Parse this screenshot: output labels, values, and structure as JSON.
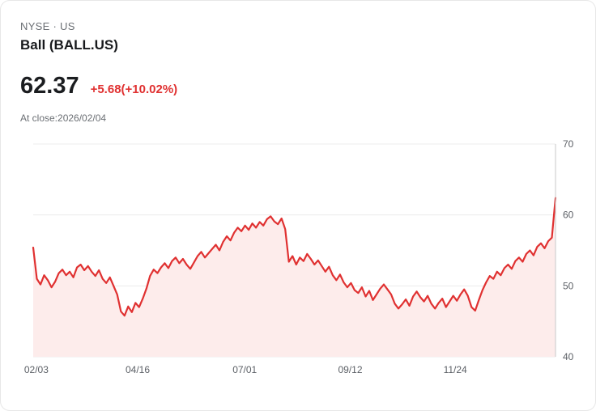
{
  "header": {
    "exchange_line": "NYSE · US",
    "name": "Ball (BALL.US)",
    "price": "62.37",
    "change": "+5.68(+10.02%)",
    "as_of": "At close:2026/02/04"
  },
  "colors": {
    "accent_red": "#e03131",
    "area_fill": "#fdeceb",
    "grid": "#ececec",
    "axis": "#c9c9c9",
    "tick_text": "#5c6066"
  },
  "chart_data": {
    "type": "line",
    "title": "Ball (BALL.US) 1-year price history",
    "xlabel": "",
    "ylabel": "",
    "ylim": [
      40,
      70
    ],
    "y_ticks": [
      70,
      60,
      50,
      40
    ],
    "grid": true,
    "legend_position": "none",
    "x_ticks": [
      {
        "label": "02/03",
        "pos": 0.006
      },
      {
        "label": "04/16",
        "pos": 0.2
      },
      {
        "label": "07/01",
        "pos": 0.405
      },
      {
        "label": "09/12",
        "pos": 0.607
      },
      {
        "label": "11/24",
        "pos": 0.808
      }
    ],
    "values": [
      55.4,
      51.0,
      50.2,
      51.5,
      50.8,
      49.8,
      50.6,
      51.8,
      52.3,
      51.5,
      52.0,
      51.2,
      52.6,
      53.0,
      52.2,
      52.8,
      52.0,
      51.4,
      52.2,
      51.0,
      50.4,
      51.2,
      50.0,
      48.8,
      46.4,
      45.8,
      47.1,
      46.3,
      47.6,
      47.0,
      48.2,
      49.6,
      51.4,
      52.3,
      51.8,
      52.6,
      53.2,
      52.5,
      53.5,
      54.0,
      53.2,
      53.8,
      53.0,
      52.4,
      53.3,
      54.2,
      54.8,
      54.0,
      54.6,
      55.2,
      55.8,
      55.0,
      56.2,
      57.0,
      56.4,
      57.5,
      58.2,
      57.7,
      58.5,
      57.9,
      58.8,
      58.2,
      59.0,
      58.5,
      59.4,
      59.8,
      59.1,
      58.7,
      59.5,
      58.0,
      53.4,
      54.2,
      53.0,
      54.0,
      53.5,
      54.5,
      53.8,
      53.0,
      53.6,
      52.8,
      52.0,
      52.7,
      51.5,
      50.8,
      51.6,
      50.5,
      49.8,
      50.4,
      49.4,
      49.0,
      49.8,
      48.5,
      49.3,
      48.0,
      48.8,
      49.6,
      50.2,
      49.5,
      48.8,
      47.5,
      46.8,
      47.4,
      48.1,
      47.2,
      48.5,
      49.2,
      48.4,
      47.8,
      48.6,
      47.5,
      46.8,
      47.6,
      48.2,
      47.0,
      47.8,
      48.6,
      47.9,
      48.8,
      49.5,
      48.6,
      47.0,
      46.5,
      48.0,
      49.4,
      50.5,
      51.4,
      51.0,
      52.0,
      51.5,
      52.5,
      53.0,
      52.4,
      53.5,
      54.0,
      53.4,
      54.5,
      55.0,
      54.3,
      55.5,
      56.0,
      55.3,
      56.3,
      56.8,
      62.4
    ]
  }
}
